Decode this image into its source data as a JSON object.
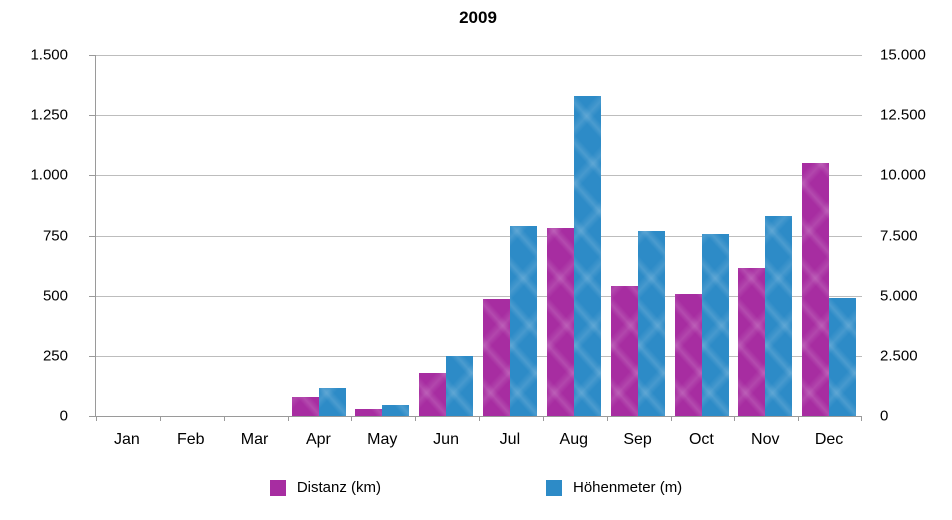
{
  "chart_data": {
    "type": "bar",
    "title": "2009",
    "categories": [
      "Jan",
      "Feb",
      "Mar",
      "Apr",
      "May",
      "Jun",
      "Jul",
      "Aug",
      "Sep",
      "Oct",
      "Nov",
      "Dec"
    ],
    "series": [
      {
        "name": "Distanz (km)",
        "axis": "left",
        "color": "#a72da1",
        "values": [
          0,
          0,
          0,
          80,
          30,
          180,
          485,
          780,
          540,
          505,
          615,
          1050
        ]
      },
      {
        "name": "Höhenmeter (m)",
        "axis": "right",
        "color": "#2d8bc7",
        "values": [
          0,
          0,
          0,
          1150,
          450,
          2500,
          7900,
          13300,
          7700,
          7550,
          8300,
          4900
        ]
      }
    ],
    "left_axis": {
      "max": 1500,
      "min": 0,
      "ticks": [
        "1.500",
        "1.250",
        "1.000",
        "750",
        "500",
        "250",
        "0"
      ]
    },
    "right_axis": {
      "max": 15000,
      "min": 0,
      "ticks": [
        "15.000",
        "12.500",
        "10.000",
        "7.500",
        "5.000",
        "2.500",
        "0"
      ]
    },
    "grid": true,
    "legend_position": "bottom",
    "colors": {
      "gridline": "#bdbdbd",
      "axis": "#9a9a9a",
      "text": "#000000",
      "background": "#ffffff"
    }
  }
}
